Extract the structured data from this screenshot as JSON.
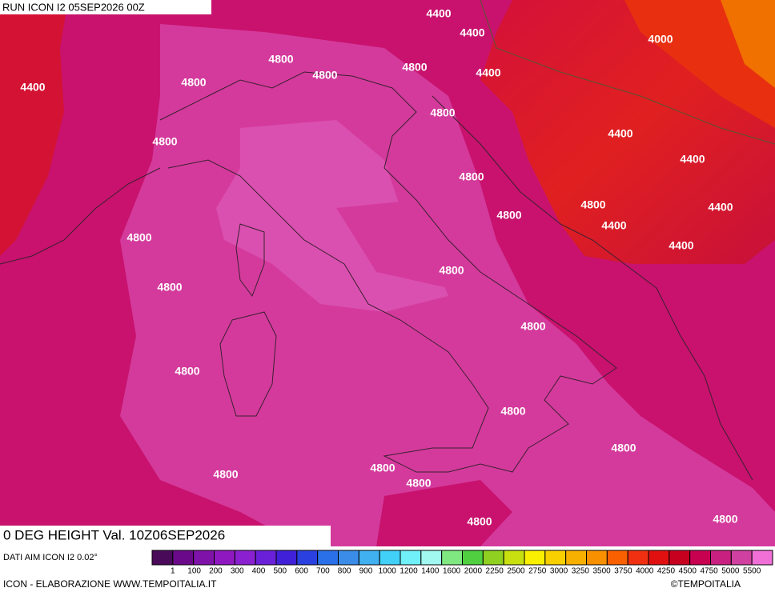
{
  "header": {
    "run": "RUN ICON I2 05SEP2026 00Z",
    "title": "0 DEG HEIGHT Val. 10Z06SEP2026"
  },
  "source": "DATI AIM ICON I2 0.02°",
  "footer": {
    "left": "ICON - ELABORAZIONE WWW.TEMPOITALIA.IT",
    "right": "©TEMPOITALIA"
  },
  "colorbar": {
    "colors": [
      "#4a0a5a",
      "#6a0a8a",
      "#7f12a8",
      "#9018c0",
      "#8a20d0",
      "#6a20d8",
      "#4020d8",
      "#2a40e0",
      "#2a70e8",
      "#3a8ce8",
      "#40b0f0",
      "#40d0f8",
      "#70f0f8",
      "#a0f8f0",
      "#80e880",
      "#50d040",
      "#90d020",
      "#c8e010",
      "#f8f000",
      "#f8d000",
      "#f8b000",
      "#f89000",
      "#f86000",
      "#f03010",
      "#e01010",
      "#c80020",
      "#c80050",
      "#c82080",
      "#d040a0",
      "#f070d8"
    ],
    "labels": [
      1,
      100,
      200,
      300,
      400,
      500,
      600,
      700,
      800,
      900,
      1000,
      1200,
      1400,
      1600,
      2000,
      2250,
      2500,
      2750,
      3000,
      3250,
      3500,
      3750,
      4000,
      4250,
      4500,
      4750,
      5000,
      5500
    ]
  },
  "contour_labels": [
    "4400",
    "4400",
    "4400",
    "4000",
    "4400",
    "4400",
    "4400",
    "4400",
    "4400",
    "4400",
    "4800",
    "4800",
    "4800",
    "4800",
    "4800",
    "4800",
    "4800",
    "4800",
    "4800",
    "4800",
    "4800",
    "4800",
    "4800",
    "4800",
    "4800",
    "4800",
    "4800",
    "4800",
    "4800",
    "4800",
    "4800"
  ]
}
